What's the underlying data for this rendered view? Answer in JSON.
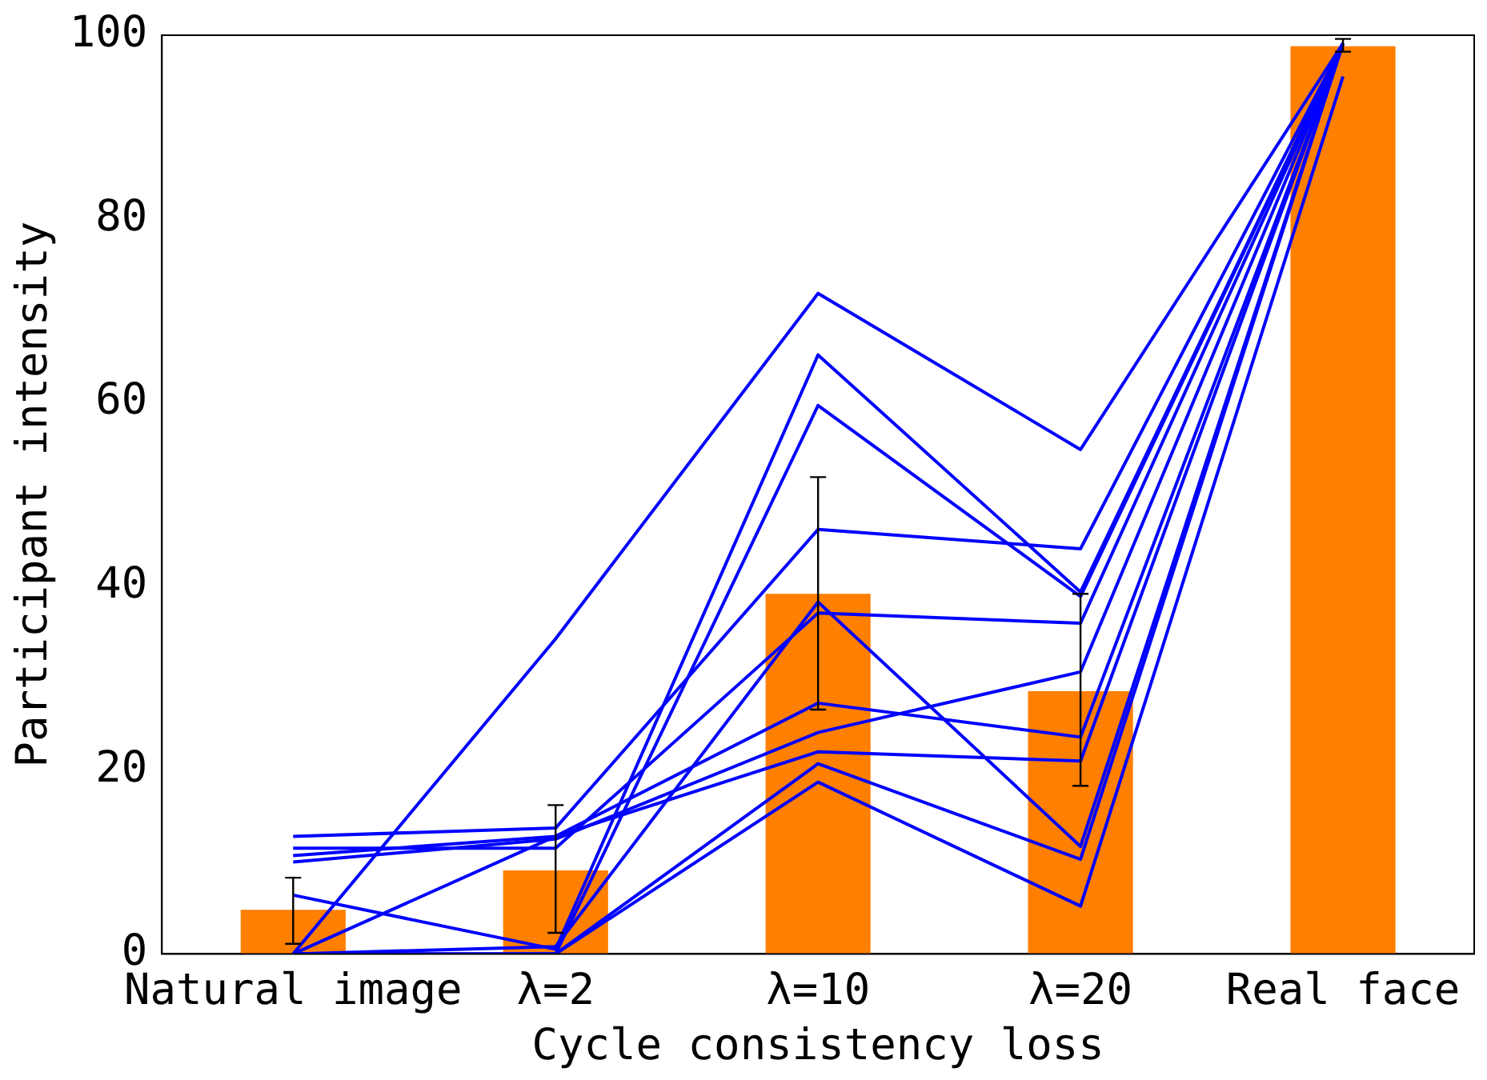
{
  "chart_data": {
    "type": "bar",
    "xlabel": "Cycle consistency loss",
    "ylabel": "Participant intensity",
    "categories": [
      "Natural image",
      "λ=2",
      "λ=10",
      "λ=20",
      "Real face"
    ],
    "ylim": [
      0,
      100
    ],
    "yticks": [
      0,
      20,
      40,
      60,
      80,
      100
    ],
    "grid": false,
    "legend": false,
    "series": [
      {
        "color": "#ff7f00",
        "values": [
          4.8,
          9.1,
          39.2,
          28.6,
          98.8
        ],
        "errors": [
          [
            1.1,
            8.3
          ],
          [
            2.3,
            16.2
          ],
          [
            26.6,
            51.9
          ],
          [
            18.3,
            39.2
          ],
          [
            98.2,
            99.6
          ]
        ]
      },
      {
        "type": "line",
        "color": "#0000ff",
        "marker": "none",
        "values": [
          0,
          34.3,
          71.9,
          54.9,
          99.1
        ]
      },
      {
        "type": "line",
        "color": "#0000ff",
        "marker": "none",
        "values": [
          12.8,
          13.7,
          46.2,
          44.1,
          99.1
        ]
      },
      {
        "type": "line",
        "color": "#0000ff",
        "marker": "none",
        "values": [
          11.5,
          11.5,
          37.1,
          36.0,
          99.1
        ]
      },
      {
        "type": "line",
        "color": "#0000ff",
        "marker": "none",
        "values": [
          10.7,
          12.8,
          27.3,
          23.6,
          99.1
        ]
      },
      {
        "type": "line",
        "color": "#0000ff",
        "marker": "none",
        "values": [
          10.0,
          12.5,
          24.1,
          30.7,
          99.1
        ]
      },
      {
        "type": "line",
        "color": "#0000ff",
        "marker": "none",
        "values": [
          0,
          12.8,
          22.0,
          21.0,
          99.1
        ]
      },
      {
        "type": "line",
        "color": "#0000ff",
        "marker": "none",
        "values": [
          6.4,
          0.5,
          65.2,
          39.4,
          99.1
        ]
      },
      {
        "type": "line",
        "color": "#0000ff",
        "marker": "none",
        "values": [
          0,
          0,
          59.7,
          38.9,
          99.1
        ]
      },
      {
        "type": "line",
        "color": "#0000ff",
        "marker": "none",
        "values": [
          0,
          0.8,
          38.3,
          11.7,
          99.1
        ]
      },
      {
        "type": "line",
        "color": "#0000ff",
        "marker": "none",
        "values": [
          0,
          0,
          20.7,
          10.3,
          99.1
        ]
      },
      {
        "type": "line",
        "color": "#0000ff",
        "marker": "none",
        "values": [
          0,
          0,
          18.7,
          5.2,
          95.5
        ]
      }
    ]
  }
}
